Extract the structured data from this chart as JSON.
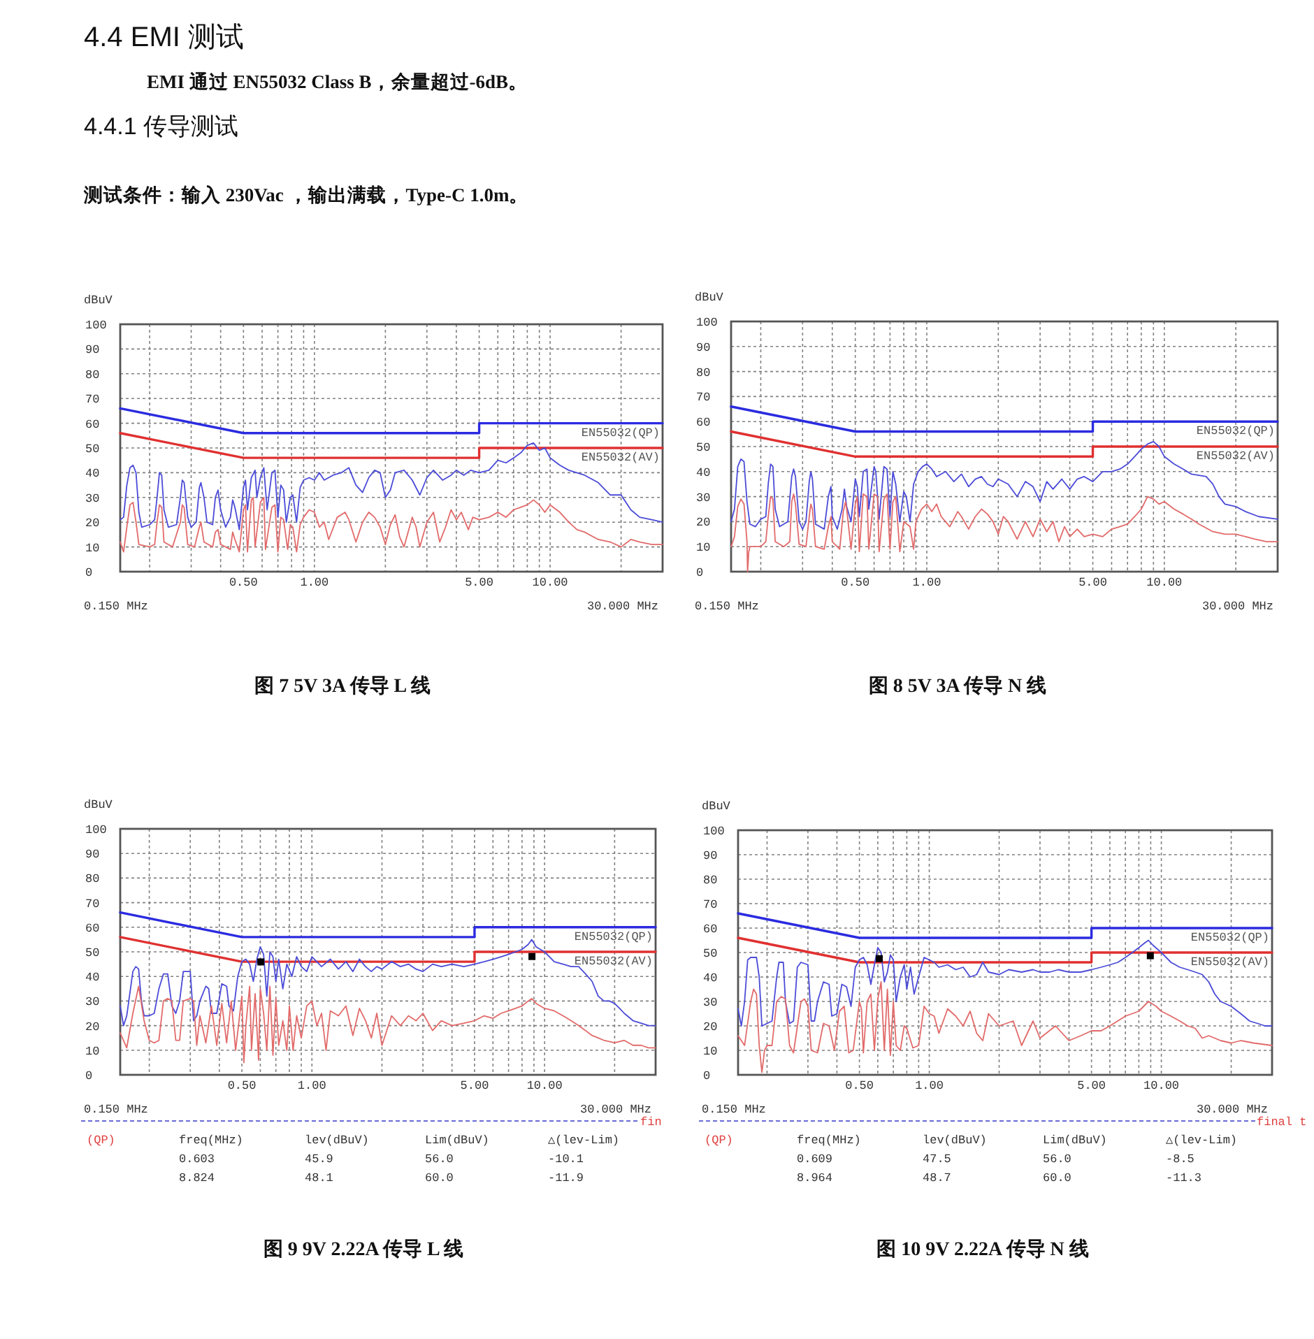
{
  "chart_data": [
    {
      "type": "other",
      "title": "4.4 EMI 测试",
      "subtitle": "EMI 通过 EN55032 Class B，余量超过-6dB。",
      "annotations": [
        "4.4.1 传导测试",
        "测试条件：输入 230Vac ，输出满载，Type-C 1.0m。"
      ]
    },
    {
      "type": "line",
      "title": "图 7 5V 3A 传导 L 线",
      "ylabel": "dBuV",
      "log": "x",
      "grid": true,
      "xlim": [
        0.15,
        30
      ],
      "ylim": [
        0,
        100
      ],
      "xticks": [
        {
          "value": 0.2,
          "label": null
        },
        {
          "value": 0.3,
          "label": null
        },
        {
          "value": 0.4,
          "label": null
        },
        {
          "value": 0.5,
          "label": "0.50"
        },
        {
          "value": 0.6,
          "label": null
        },
        {
          "value": 0.7,
          "label": null
        },
        {
          "value": 0.8,
          "label": null
        },
        {
          "value": 0.9,
          "label": null
        },
        {
          "value": 1,
          "label": "1.00"
        },
        {
          "value": 2,
          "label": null
        },
        {
          "value": 3,
          "label": null
        },
        {
          "value": 4,
          "label": null
        },
        {
          "value": 5,
          "label": "5.00"
        },
        {
          "value": 6,
          "label": null
        },
        {
          "value": 7,
          "label": null
        },
        {
          "value": 8,
          "label": null
        },
        {
          "value": 9,
          "label": null
        },
        {
          "value": 10,
          "label": "10.00"
        },
        {
          "value": 20,
          "label": null
        }
      ],
      "yticks": [
        0,
        10,
        20,
        30,
        40,
        50,
        60,
        70,
        80,
        90,
        100
      ],
      "series": [
        {
          "name": "EN55032(QP)",
          "color": "#2b2be0",
          "x": [
            0.15,
            0.5,
            5,
            5,
            30
          ],
          "values": [
            66,
            56,
            56,
            60,
            60
          ]
        },
        {
          "name": "EN55032(AV)",
          "color": "#e03030",
          "x": [
            0.15,
            0.5,
            5,
            5,
            30
          ],
          "values": [
            56,
            46,
            46,
            50,
            50
          ]
        },
        {
          "color": "#4b4bd8",
          "x": [
            0.15,
            0.155,
            0.16,
            0.165,
            0.17,
            0.175,
            0.18,
            0.185,
            0.2,
            0.21,
            0.215,
            0.22,
            0.225,
            0.23,
            0.24,
            0.26,
            0.27,
            0.275,
            0.28,
            0.29,
            0.3,
            0.315,
            0.325,
            0.33,
            0.34,
            0.35,
            0.37,
            0.38,
            0.39,
            0.4,
            0.42,
            0.44,
            0.45,
            0.46,
            0.48,
            0.5,
            0.51,
            0.52,
            0.54,
            0.56,
            0.57,
            0.59,
            0.61,
            0.63,
            0.66,
            0.68,
            0.7,
            0.72,
            0.74,
            0.76,
            0.79,
            0.81,
            0.84,
            0.87,
            0.9,
            0.95,
            1,
            1.05,
            1.1,
            1.2,
            1.3,
            1.4,
            1.5,
            1.6,
            1.7,
            1.8,
            1.9,
            2,
            2.1,
            2.2,
            2.4,
            2.6,
            2.8,
            3,
            3.2,
            3.5,
            3.8,
            4,
            4.3,
            4.6,
            5,
            5.5,
            6,
            6.5,
            7,
            7.5,
            8,
            8.5,
            9,
            9.5,
            10,
            11,
            12,
            14,
            16,
            18,
            20,
            22,
            24,
            27,
            30
          ],
          "values": [
            21,
            22,
            35,
            42,
            43,
            40,
            24,
            18,
            19,
            21,
            30,
            40,
            39,
            25,
            18,
            19,
            30,
            37,
            36,
            22,
            18,
            20,
            34,
            36,
            30,
            20,
            19,
            30,
            33,
            25,
            18,
            22,
            29,
            26,
            17,
            34,
            37,
            25,
            38,
            41,
            30,
            38,
            42,
            25,
            40,
            41,
            22,
            35,
            33,
            20,
            30,
            31,
            20,
            34,
            37,
            38,
            37,
            40,
            37,
            39,
            40,
            42,
            35,
            32,
            38,
            41,
            40,
            30,
            33,
            40,
            41,
            37,
            31,
            38,
            41,
            37,
            39,
            41,
            39,
            41,
            40,
            41,
            45,
            44,
            46,
            48,
            51,
            52,
            49,
            50,
            46,
            43,
            41,
            39,
            36,
            31,
            31,
            25,
            22,
            21,
            20
          ]
        },
        {
          "color": "#e26a6a",
          "x": [
            0.15,
            0.155,
            0.16,
            0.165,
            0.17,
            0.175,
            0.18,
            0.2,
            0.21,
            0.215,
            0.22,
            0.225,
            0.23,
            0.25,
            0.27,
            0.275,
            0.28,
            0.29,
            0.31,
            0.325,
            0.33,
            0.34,
            0.37,
            0.38,
            0.39,
            0.4,
            0.44,
            0.45,
            0.46,
            0.48,
            0.5,
            0.51,
            0.52,
            0.54,
            0.55,
            0.56,
            0.59,
            0.61,
            0.62,
            0.66,
            0.68,
            0.7,
            0.72,
            0.74,
            0.77,
            0.79,
            0.81,
            0.84,
            0.87,
            0.9,
            0.95,
            1,
            1.05,
            1.1,
            1.15,
            1.25,
            1.35,
            1.4,
            1.5,
            1.6,
            1.7,
            1.8,
            1.9,
            2,
            2.1,
            2.2,
            2.3,
            2.4,
            2.6,
            2.7,
            2.8,
            3,
            3.2,
            3.4,
            3.6,
            3.8,
            4,
            4.2,
            4.5,
            4.7,
            5,
            5.5,
            6,
            6.5,
            7,
            7.5,
            8,
            8.5,
            9,
            9.5,
            10,
            11,
            12,
            13,
            14,
            16,
            18,
            20,
            22,
            24,
            27,
            30
          ],
          "values": [
            12,
            8,
            18,
            27,
            28,
            20,
            11,
            10,
            11,
            20,
            27,
            26,
            12,
            10,
            20,
            27,
            26,
            11,
            10,
            18,
            20,
            12,
            10,
            16,
            17,
            11,
            9,
            16,
            13,
            8,
            25,
            27,
            8,
            29,
            30,
            10,
            28,
            30,
            9,
            26,
            27,
            8,
            22,
            21,
            9,
            19,
            18,
            8,
            19,
            22,
            25,
            24,
            18,
            20,
            13,
            22,
            24,
            21,
            12,
            20,
            24,
            22,
            18,
            11,
            19,
            23,
            14,
            10,
            22,
            18,
            10,
            20,
            24,
            12,
            18,
            25,
            21,
            24,
            17,
            22,
            21,
            22,
            24,
            22,
            25,
            26,
            27,
            29,
            27,
            24,
            27,
            24,
            20,
            17,
            16,
            13,
            12,
            10,
            13,
            12,
            11,
            11
          ]
        }
      ],
      "annotations": [
        "0.150 MHz",
        "30.000 MHz"
      ]
    },
    {
      "type": "line",
      "title": "图 8 5V 3A 传导 N 线",
      "ylabel": "dBuV",
      "log": "x",
      "grid": true,
      "xlim": [
        0.15,
        30
      ],
      "ylim": [
        0,
        100
      ],
      "xticks": [
        {
          "value": 0.2,
          "label": null
        },
        {
          "value": 0.3,
          "label": null
        },
        {
          "value": 0.4,
          "label": null
        },
        {
          "value": 0.5,
          "label": "0.50"
        },
        {
          "value": 0.6,
          "label": null
        },
        {
          "value": 0.7,
          "label": null
        },
        {
          "value": 0.8,
          "label": null
        },
        {
          "value": 0.9,
          "label": null
        },
        {
          "value": 1,
          "label": "1.00"
        },
        {
          "value": 2,
          "label": null
        },
        {
          "value": 3,
          "label": null
        },
        {
          "value": 4,
          "label": null
        },
        {
          "value": 5,
          "label": "5.00"
        },
        {
          "value": 6,
          "label": null
        },
        {
          "value": 7,
          "label": null
        },
        {
          "value": 8,
          "label": null
        },
        {
          "value": 9,
          "label": null
        },
        {
          "value": 10,
          "label": "10.00"
        },
        {
          "value": 20,
          "label": null
        }
      ],
      "yticks": [
        0,
        10,
        20,
        30,
        40,
        50,
        60,
        70,
        80,
        90,
        100
      ],
      "series": [
        {
          "name": "EN55032(QP)",
          "color": "#2b2be0",
          "x": [
            0.15,
            0.5,
            5,
            5,
            30
          ],
          "values": [
            66,
            56,
            56,
            60,
            60
          ]
        },
        {
          "name": "EN55032(AV)",
          "color": "#e03030",
          "x": [
            0.15,
            0.5,
            5,
            5,
            30
          ],
          "values": [
            56,
            46,
            46,
            50,
            50
          ]
        },
        {
          "color": "#4b4bd8",
          "x": [
            0.15,
            0.155,
            0.16,
            0.165,
            0.17,
            0.175,
            0.18,
            0.19,
            0.2,
            0.21,
            0.215,
            0.22,
            0.225,
            0.23,
            0.24,
            0.26,
            0.27,
            0.275,
            0.28,
            0.29,
            0.3,
            0.31,
            0.32,
            0.325,
            0.33,
            0.34,
            0.37,
            0.385,
            0.395,
            0.4,
            0.42,
            0.44,
            0.45,
            0.46,
            0.48,
            0.5,
            0.51,
            0.52,
            0.54,
            0.56,
            0.57,
            0.6,
            0.61,
            0.63,
            0.66,
            0.68,
            0.7,
            0.72,
            0.74,
            0.77,
            0.8,
            0.82,
            0.85,
            0.88,
            0.92,
            0.96,
            1,
            1.05,
            1.1,
            1.2,
            1.3,
            1.4,
            1.5,
            1.6,
            1.7,
            1.8,
            1.9,
            2,
            2.2,
            2.4,
            2.6,
            2.8,
            3,
            3.2,
            3.4,
            3.7,
            4,
            4.3,
            4.6,
            5,
            5.5,
            6,
            6.5,
            7,
            7.5,
            8,
            8.5,
            9,
            9.5,
            10,
            11,
            12,
            13,
            15,
            16,
            17,
            18,
            20,
            22,
            25,
            30
          ],
          "values": [
            20,
            25,
            42,
            45,
            44,
            28,
            19,
            18,
            21,
            22,
            35,
            43,
            42,
            25,
            18,
            20,
            38,
            41,
            38,
            20,
            17,
            20,
            36,
            40,
            37,
            19,
            17,
            30,
            34,
            22,
            17,
            25,
            33,
            26,
            20,
            37,
            34,
            22,
            40,
            41,
            25,
            42,
            40,
            21,
            42,
            41,
            22,
            40,
            35,
            20,
            32,
            30,
            20,
            35,
            40,
            42,
            43,
            41,
            38,
            40,
            36,
            39,
            34,
            37,
            38,
            35,
            34,
            37,
            35,
            30,
            36,
            34,
            28,
            36,
            33,
            37,
            33,
            37,
            38,
            36,
            40,
            40,
            41,
            43,
            46,
            49,
            51,
            52,
            50,
            46,
            43,
            41,
            39,
            38,
            35,
            30,
            27,
            26,
            24,
            22,
            21
          ]
        },
        {
          "color": "#e26a6a",
          "x": [
            0.15,
            0.155,
            0.16,
            0.165,
            0.17,
            0.175,
            0.176,
            0.178,
            0.18,
            0.2,
            0.21,
            0.215,
            0.22,
            0.225,
            0.23,
            0.25,
            0.265,
            0.27,
            0.275,
            0.28,
            0.29,
            0.31,
            0.32,
            0.325,
            0.33,
            0.34,
            0.37,
            0.385,
            0.395,
            0.4,
            0.43,
            0.445,
            0.455,
            0.46,
            0.48,
            0.5,
            0.51,
            0.52,
            0.54,
            0.56,
            0.57,
            0.6,
            0.62,
            0.63,
            0.66,
            0.68,
            0.7,
            0.72,
            0.74,
            0.77,
            0.8,
            0.85,
            0.88,
            0.9,
            0.95,
            1,
            1.05,
            1.1,
            1.15,
            1.25,
            1.35,
            1.4,
            1.5,
            1.6,
            1.7,
            1.8,
            1.9,
            2,
            2.1,
            2.2,
            2.4,
            2.6,
            2.8,
            3,
            3.2,
            3.4,
            3.6,
            3.8,
            4,
            4.3,
            4.6,
            5,
            5.5,
            6,
            6.5,
            7,
            7.5,
            8,
            8.5,
            9,
            9.5,
            10,
            11,
            12,
            13,
            14,
            16,
            18,
            20,
            22,
            24,
            27,
            30
          ],
          "values": [
            10,
            14,
            26,
            29,
            27,
            12,
            0,
            8,
            10,
            10,
            12,
            22,
            30,
            29,
            12,
            10,
            12,
            28,
            31,
            27,
            11,
            10,
            22,
            27,
            25,
            10,
            9,
            18,
            22,
            12,
            9,
            24,
            28,
            25,
            9,
            27,
            30,
            8,
            31,
            30,
            9,
            31,
            30,
            8,
            29,
            31,
            9,
            28,
            30,
            8,
            20,
            18,
            9,
            20,
            25,
            27,
            24,
            27,
            22,
            18,
            24,
            22,
            17,
            22,
            25,
            23,
            20,
            15,
            22,
            20,
            13,
            20,
            14,
            21,
            16,
            20,
            12,
            18,
            14,
            17,
            14,
            15,
            14,
            17,
            18,
            19,
            22,
            25,
            30,
            29,
            27,
            28,
            25,
            23,
            21,
            19,
            16,
            15,
            15,
            14,
            13,
            12,
            12
          ]
        }
      ],
      "annotations": [
        "0.150 MHz",
        "30.000 MHz"
      ]
    },
    {
      "type": "line",
      "title": "图 9 9V 2.22A 传导 L 线",
      "ylabel": "dBuV",
      "log": "x",
      "grid": true,
      "xlim": [
        0.15,
        30
      ],
      "ylim": [
        0,
        100
      ],
      "xticks": [
        {
          "value": 0.2,
          "label": null
        },
        {
          "value": 0.3,
          "label": null
        },
        {
          "value": 0.4,
          "label": null
        },
        {
          "value": 0.5,
          "label": "0.50"
        },
        {
          "value": 0.6,
          "label": null
        },
        {
          "value": 0.7,
          "label": null
        },
        {
          "value": 0.8,
          "label": null
        },
        {
          "value": 0.9,
          "label": null
        },
        {
          "value": 1,
          "label": "1.00"
        },
        {
          "value": 2,
          "label": null
        },
        {
          "value": 3,
          "label": null
        },
        {
          "value": 4,
          "label": null
        },
        {
          "value": 5,
          "label": "5.00"
        },
        {
          "value": 6,
          "label": null
        },
        {
          "value": 7,
          "label": null
        },
        {
          "value": 8,
          "label": null
        },
        {
          "value": 9,
          "label": null
        },
        {
          "value": 10,
          "label": "10.00"
        },
        {
          "value": 20,
          "label": null
        }
      ],
      "yticks": [
        0,
        10,
        20,
        30,
        40,
        50,
        60,
        70,
        80,
        90,
        100
      ],
      "series": [
        {
          "name": "EN55032(QP)",
          "color": "#2b2be0",
          "x": [
            0.15,
            0.5,
            5,
            5,
            30
          ],
          "values": [
            66,
            56,
            56,
            60,
            60
          ]
        },
        {
          "name": "EN55032(AV)",
          "color": "#e03030",
          "x": [
            0.15,
            0.5,
            5,
            5,
            30
          ],
          "values": [
            56,
            46,
            46,
            50,
            50
          ]
        },
        {
          "color": "#4b4bd8",
          "x": [
            0.15,
            0.155,
            0.16,
            0.17,
            0.175,
            0.18,
            0.185,
            0.19,
            0.2,
            0.21,
            0.22,
            0.23,
            0.24,
            0.25,
            0.26,
            0.27,
            0.28,
            0.3,
            0.31,
            0.32,
            0.33,
            0.35,
            0.36,
            0.37,
            0.39,
            0.41,
            0.43,
            0.44,
            0.46,
            0.48,
            0.5,
            0.52,
            0.54,
            0.56,
            0.58,
            0.6,
            0.62,
            0.64,
            0.66,
            0.68,
            0.7,
            0.72,
            0.75,
            0.78,
            0.82,
            0.86,
            0.9,
            0.95,
            1,
            1.05,
            1.1,
            1.2,
            1.3,
            1.4,
            1.5,
            1.6,
            1.7,
            1.8,
            1.9,
            2,
            2.2,
            2.4,
            2.6,
            2.8,
            3,
            3.3,
            3.6,
            4,
            4.5,
            5,
            5.5,
            6,
            6.5,
            7,
            7.5,
            8,
            8.5,
            8.8,
            9.2,
            10,
            11,
            12,
            13,
            14,
            15,
            16,
            17,
            18,
            19,
            20,
            21,
            22,
            24,
            26,
            28,
            30
          ],
          "values": [
            28,
            20,
            24,
            42,
            44,
            43,
            30,
            24,
            24,
            25,
            35,
            41,
            41,
            28,
            25,
            30,
            42,
            42,
            22,
            24,
            30,
            36,
            35,
            25,
            25,
            37,
            36,
            28,
            26,
            40,
            46,
            47,
            45,
            38,
            47,
            52,
            49,
            32,
            50,
            48,
            38,
            47,
            35,
            45,
            40,
            48,
            44,
            42,
            48,
            46,
            44,
            47,
            43,
            46,
            42,
            47,
            44,
            42,
            44,
            43,
            46,
            44,
            45,
            43,
            42,
            45,
            44,
            45,
            44,
            45,
            46,
            47,
            48,
            49,
            50,
            51,
            53,
            55,
            52,
            50,
            46,
            45,
            44,
            44,
            41,
            38,
            32,
            30,
            30,
            29,
            27,
            25,
            22,
            21,
            20,
            20
          ]
        },
        {
          "color": "#e26a6a",
          "x": [
            0.15,
            0.16,
            0.17,
            0.18,
            0.19,
            0.2,
            0.21,
            0.22,
            0.23,
            0.24,
            0.25,
            0.26,
            0.27,
            0.28,
            0.3,
            0.31,
            0.32,
            0.33,
            0.35,
            0.37,
            0.39,
            0.41,
            0.43,
            0.45,
            0.47,
            0.5,
            0.51,
            0.52,
            0.54,
            0.55,
            0.57,
            0.59,
            0.6,
            0.62,
            0.64,
            0.66,
            0.68,
            0.7,
            0.72,
            0.75,
            0.78,
            0.8,
            0.83,
            0.86,
            0.9,
            0.95,
            1,
            1.05,
            1.1,
            1.15,
            1.2,
            1.3,
            1.4,
            1.5,
            1.6,
            1.7,
            1.8,
            1.9,
            2,
            2.2,
            2.4,
            2.6,
            2.8,
            3,
            3.3,
            3.6,
            4,
            4.5,
            5,
            5.5,
            6,
            6.5,
            7,
            7.5,
            8,
            8.5,
            8.8,
            9.2,
            10,
            11,
            12,
            13,
            14,
            15,
            16,
            17,
            18,
            20,
            22,
            24,
            26,
            28,
            30
          ],
          "values": [
            17,
            11,
            25,
            36,
            22,
            14,
            13,
            14,
            30,
            31,
            30,
            14,
            14,
            30,
            31,
            30,
            12,
            24,
            13,
            28,
            12,
            29,
            13,
            30,
            10,
            32,
            5,
            20,
            36,
            10,
            33,
            6,
            35,
            25,
            10,
            36,
            8,
            31,
            12,
            22,
            10,
            28,
            10,
            24,
            15,
            28,
            30,
            20,
            25,
            10,
            26,
            24,
            28,
            16,
            27,
            22,
            15,
            25,
            12,
            24,
            20,
            24,
            22,
            25,
            18,
            22,
            20,
            21,
            22,
            24,
            23,
            25,
            26,
            27,
            28,
            30,
            31,
            29,
            27,
            26,
            24,
            22,
            20,
            18,
            16,
            15,
            14,
            13,
            14,
            12,
            12,
            11,
            11
          ]
        },
        {
          "type": "scatter",
          "marker": "square",
          "color": "#000000",
          "x": [
            0.603,
            8.824
          ],
          "values": [
            45.9,
            48.1
          ]
        }
      ],
      "annotations": [
        "0.150 MHz",
        "30.000 MHz",
        "fin",
        "(QP)",
        "freq(MHz)",
        "lev(dBuV)",
        "Lim(dBuV)",
        "△(lev-Lim)",
        "0.603",
        "45.9",
        "56.0",
        "-10.1",
        "8.824",
        "48.1",
        "60.0",
        "-11.9"
      ]
    },
    {
      "type": "line",
      "title": "图 10 9V 2.22A 传导 N 线",
      "ylabel": "dBuV",
      "log": "x",
      "grid": true,
      "xlim": [
        0.15,
        30
      ],
      "ylim": [
        0,
        100
      ],
      "xticks": [
        {
          "value": 0.2,
          "label": null
        },
        {
          "value": 0.3,
          "label": null
        },
        {
          "value": 0.4,
          "label": null
        },
        {
          "value": 0.5,
          "label": "0.50"
        },
        {
          "value": 0.6,
          "label": null
        },
        {
          "value": 0.7,
          "label": null
        },
        {
          "value": 0.8,
          "label": null
        },
        {
          "value": 0.9,
          "label": null
        },
        {
          "value": 1,
          "label": "1.00"
        },
        {
          "value": 2,
          "label": null
        },
        {
          "value": 3,
          "label": null
        },
        {
          "value": 4,
          "label": null
        },
        {
          "value": 5,
          "label": "5.00"
        },
        {
          "value": 6,
          "label": null
        },
        {
          "value": 7,
          "label": null
        },
        {
          "value": 8,
          "label": null
        },
        {
          "value": 9,
          "label": null
        },
        {
          "value": 10,
          "label": "10.00"
        },
        {
          "value": 20,
          "label": null
        }
      ],
      "yticks": [
        0,
        10,
        20,
        30,
        40,
        50,
        60,
        70,
        80,
        90,
        100
      ],
      "series": [
        {
          "name": "EN55032(QP)",
          "color": "#2b2be0",
          "x": [
            0.15,
            0.5,
            5,
            5,
            30
          ],
          "values": [
            66,
            56,
            56,
            60,
            60
          ]
        },
        {
          "name": "EN55032(AV)",
          "color": "#e03030",
          "x": [
            0.15,
            0.5,
            5,
            5,
            30
          ],
          "values": [
            56,
            46,
            46,
            50,
            50
          ]
        },
        {
          "color": "#4b4bd8",
          "x": [
            0.15,
            0.155,
            0.16,
            0.165,
            0.17,
            0.18,
            0.185,
            0.19,
            0.2,
            0.21,
            0.22,
            0.225,
            0.235,
            0.24,
            0.25,
            0.26,
            0.27,
            0.28,
            0.3,
            0.31,
            0.32,
            0.33,
            0.35,
            0.37,
            0.38,
            0.4,
            0.42,
            0.44,
            0.46,
            0.48,
            0.5,
            0.52,
            0.54,
            0.56,
            0.58,
            0.6,
            0.62,
            0.64,
            0.66,
            0.68,
            0.7,
            0.72,
            0.75,
            0.78,
            0.8,
            0.83,
            0.86,
            0.9,
            0.95,
            1,
            1.05,
            1.1,
            1.2,
            1.3,
            1.4,
            1.5,
            1.6,
            1.7,
            1.8,
            2,
            2.2,
            2.5,
            2.8,
            3,
            3.3,
            3.6,
            4,
            4.5,
            5,
            5.5,
            6,
            6.5,
            7,
            7.5,
            8,
            8.5,
            8.8,
            9.2,
            10,
            11,
            12,
            13,
            14,
            15,
            16,
            17,
            18,
            20,
            22,
            24,
            26,
            28,
            30
          ],
          "values": [
            27,
            20,
            30,
            47,
            48,
            48,
            40,
            20,
            21,
            22,
            40,
            46,
            46,
            30,
            21,
            22,
            44,
            46,
            45,
            22,
            22,
            30,
            38,
            37,
            24,
            25,
            37,
            36,
            28,
            44,
            47,
            48,
            45,
            37,
            45,
            52,
            50,
            38,
            42,
            49,
            47,
            30,
            40,
            45,
            35,
            44,
            33,
            40,
            48,
            47,
            46,
            44,
            45,
            43,
            44,
            40,
            41,
            46,
            42,
            41,
            43,
            42,
            43,
            42,
            42,
            43,
            42,
            42,
            43,
            44,
            45,
            46,
            48,
            50,
            52,
            54,
            55,
            53,
            50,
            46,
            44,
            43,
            42,
            41,
            38,
            33,
            30,
            28,
            25,
            22,
            21,
            20,
            20
          ]
        },
        {
          "color": "#e26a6a",
          "x": [
            0.15,
            0.16,
            0.17,
            0.175,
            0.18,
            0.185,
            0.19,
            0.195,
            0.2,
            0.21,
            0.22,
            0.23,
            0.24,
            0.25,
            0.26,
            0.28,
            0.29,
            0.3,
            0.31,
            0.33,
            0.35,
            0.37,
            0.39,
            0.41,
            0.43,
            0.45,
            0.47,
            0.5,
            0.51,
            0.52,
            0.54,
            0.56,
            0.58,
            0.6,
            0.62,
            0.64,
            0.66,
            0.68,
            0.7,
            0.72,
            0.75,
            0.78,
            0.8,
            0.85,
            0.9,
            0.95,
            1,
            1.05,
            1.1,
            1.2,
            1.3,
            1.4,
            1.5,
            1.6,
            1.7,
            1.8,
            2,
            2.3,
            2.5,
            2.8,
            3,
            3.5,
            4,
            4.5,
            5,
            5.5,
            6,
            7,
            8,
            8.8,
            9.5,
            10,
            11,
            12,
            13,
            14,
            15,
            16,
            17,
            18,
            20,
            22,
            25,
            30
          ],
          "values": [
            16,
            12,
            30,
            35,
            33,
            12,
            1,
            10,
            12,
            12,
            30,
            32,
            31,
            12,
            9,
            30,
            31,
            28,
            10,
            9,
            21,
            20,
            10,
            26,
            28,
            9,
            10,
            30,
            27,
            9,
            30,
            33,
            10,
            31,
            38,
            10,
            35,
            8,
            30,
            12,
            10,
            20,
            19,
            11,
            12,
            28,
            25,
            24,
            17,
            27,
            24,
            20,
            26,
            17,
            14,
            25,
            20,
            22,
            12,
            22,
            15,
            20,
            14,
            16,
            18,
            18,
            20,
            24,
            26,
            30,
            28,
            26,
            24,
            22,
            20,
            19,
            15,
            16,
            15,
            14,
            13,
            14,
            13,
            12
          ]
        },
        {
          "type": "scatter",
          "marker": "square",
          "color": "#000000",
          "x": [
            0.609,
            8.964
          ],
          "values": [
            47.5,
            48.7
          ]
        }
      ],
      "annotations": [
        "0.150 MHz",
        "30.000 MHz",
        "final t",
        "(QP)",
        "freq(MHz)",
        "lev(dBuV)",
        "Lim(dBuV)",
        "△(lev-Lim)",
        "0.609",
        "47.5",
        "56.0",
        "-8.5",
        "8.964",
        "48.7",
        "60.0",
        "-11.3"
      ]
    }
  ]
}
